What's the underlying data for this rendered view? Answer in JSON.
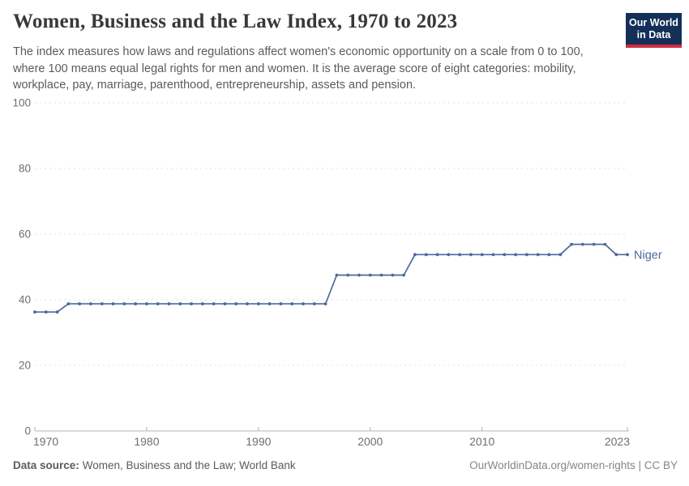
{
  "header": {
    "title": "Women, Business and the Law Index, 1970 to 2023",
    "subtitle": "The index measures how laws and regulations affect women's economic opportunity on a scale from 0 to 100, where 100 means equal legal rights for men and women. It is the average score of eight categories: mobility, workplace, pay, marriage, parenthood, entrepreneurship, assets and pension."
  },
  "logo": {
    "line1": "Our World",
    "line2": "in Data",
    "bg_color": "#143059",
    "bar_color": "#cf2e41"
  },
  "chart_data": {
    "type": "line",
    "title": "Women, Business and the Law Index, 1970 to 2023",
    "xlabel": "",
    "ylabel": "",
    "xlim": [
      1970,
      2023
    ],
    "ylim": [
      0,
      100
    ],
    "x_ticks": [
      1970,
      1980,
      1990,
      2000,
      2010,
      2023
    ],
    "y_ticks": [
      0,
      20,
      40,
      60,
      80,
      100
    ],
    "grid": "horizontal-dashed",
    "legend_position": "end-of-line-label",
    "series": [
      {
        "name": "Niger",
        "color": "#4C6A9C",
        "x": [
          1970,
          1971,
          1972,
          1973,
          1974,
          1975,
          1976,
          1977,
          1978,
          1979,
          1980,
          1981,
          1982,
          1983,
          1984,
          1985,
          1986,
          1987,
          1988,
          1989,
          1990,
          1991,
          1992,
          1993,
          1994,
          1995,
          1996,
          1997,
          1998,
          1999,
          2000,
          2001,
          2002,
          2003,
          2004,
          2005,
          2006,
          2007,
          2008,
          2009,
          2010,
          2011,
          2012,
          2013,
          2014,
          2015,
          2016,
          2017,
          2018,
          2019,
          2020,
          2021,
          2022,
          2023
        ],
        "values": [
          36.25,
          36.25,
          36.25,
          38.75,
          38.75,
          38.75,
          38.75,
          38.75,
          38.75,
          38.75,
          38.75,
          38.75,
          38.75,
          38.75,
          38.75,
          38.75,
          38.75,
          38.75,
          38.75,
          38.75,
          38.75,
          38.75,
          38.75,
          38.75,
          38.75,
          38.75,
          38.75,
          47.5,
          47.5,
          47.5,
          47.5,
          47.5,
          47.5,
          47.5,
          53.75,
          53.75,
          53.75,
          53.75,
          53.75,
          53.75,
          53.75,
          53.75,
          53.75,
          53.75,
          53.75,
          53.75,
          53.75,
          53.75,
          56.875,
          56.875,
          56.875,
          56.875,
          53.75,
          53.75
        ]
      }
    ]
  },
  "footer": {
    "source_label": "Data source:",
    "source_value": "Women, Business and the Law; World Bank",
    "credit": "OurWorldinData.org/women-rights | CC BY"
  },
  "colors": {
    "line": "#4C6A9C",
    "grid": "#e0e0e0",
    "axis": "#b3b3b3",
    "tick_label": "#6e6e6e",
    "title": "#383838",
    "subtitle": "#5b5b5b"
  }
}
